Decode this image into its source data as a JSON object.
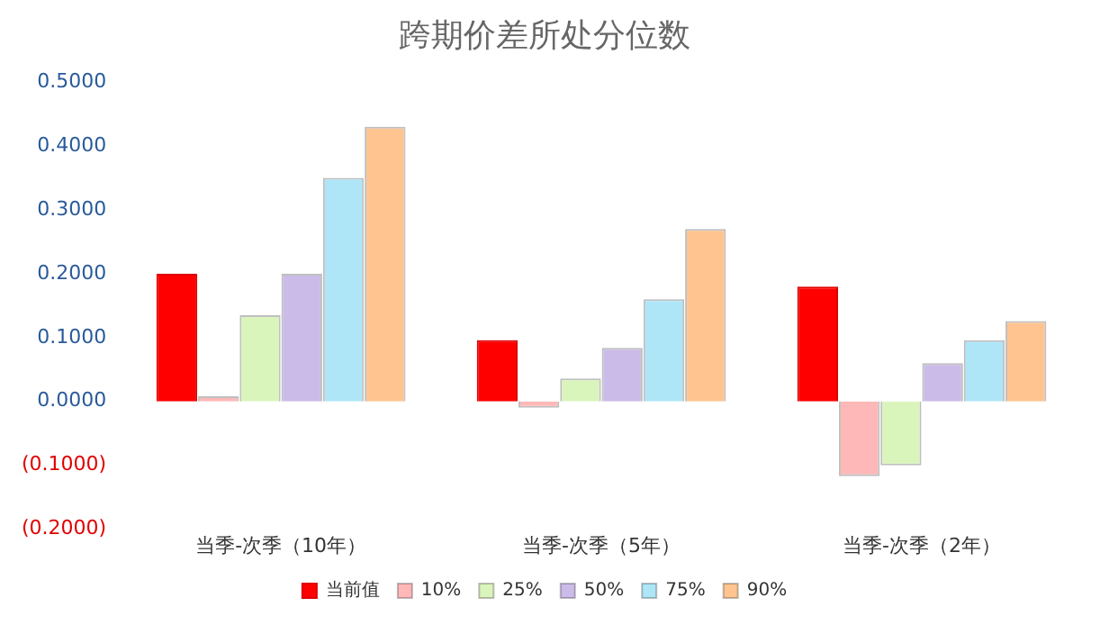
{
  "chart_data": {
    "type": "bar",
    "title": "跨期价差所处分位数",
    "categories": [
      "当季-次季（10年）",
      "当季-次季（5年）",
      "当季-次季（2年）"
    ],
    "series": [
      {
        "name": "当前值",
        "color": "#ff0000",
        "values": [
          0.2,
          0.096,
          0.18
        ]
      },
      {
        "name": "10%",
        "color": "#ffb8b8",
        "values": [
          0.008,
          -0.01,
          -0.117
        ]
      },
      {
        "name": "25%",
        "color": "#daf5bc",
        "values": [
          0.135,
          0.036,
          -0.1
        ]
      },
      {
        "name": "50%",
        "color": "#cbbbe9",
        "values": [
          0.2,
          0.084,
          0.06
        ]
      },
      {
        "name": "75%",
        "color": "#aee6f8",
        "values": [
          0.35,
          0.16,
          0.096
        ]
      },
      {
        "name": "90%",
        "color": "#ffc490",
        "values": [
          0.43,
          0.27,
          0.126
        ]
      }
    ],
    "ylim": [
      -0.2,
      0.5
    ],
    "yticks": [
      {
        "value": -0.2,
        "label": "(0.2000)"
      },
      {
        "value": -0.1,
        "label": "(0.1000)"
      },
      {
        "value": 0,
        "label": "0.0000"
      },
      {
        "value": 0.1,
        "label": "0.1000"
      },
      {
        "value": 0.2,
        "label": "0.2000"
      },
      {
        "value": 0.3,
        "label": "0.3000"
      },
      {
        "value": 0.4,
        "label": "0.4000"
      },
      {
        "value": 0.5,
        "label": "0.5000"
      }
    ],
    "grid": false,
    "legend": "bottom"
  }
}
